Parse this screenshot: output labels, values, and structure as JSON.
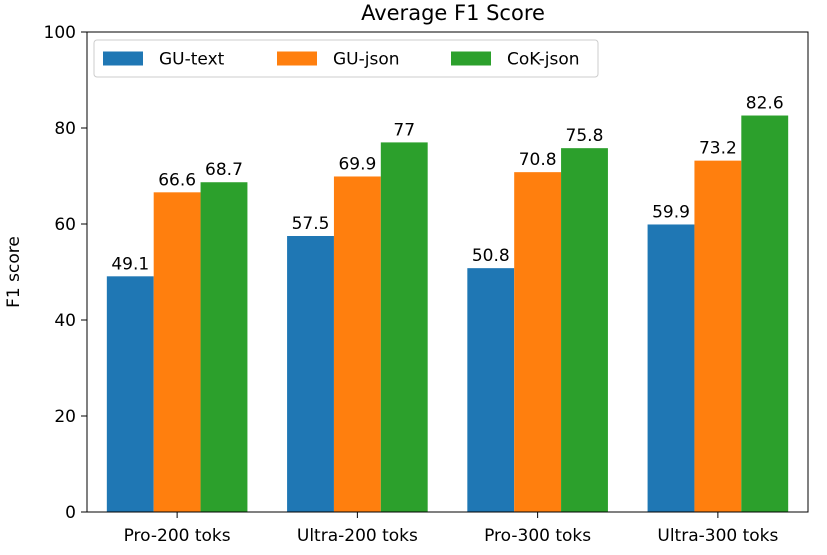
{
  "chart_data": {
    "type": "bar",
    "title": "Average F1 Score",
    "xlabel": "",
    "ylabel": "F1 score",
    "ylim": [
      0,
      100
    ],
    "yticks": [
      0,
      20,
      40,
      60,
      80,
      100
    ],
    "categories": [
      "Pro-200 toks",
      "Ultra-200 toks",
      "Pro-300 toks",
      "Ultra-300 toks"
    ],
    "series": [
      {
        "name": "GU-text",
        "color": "#1f77b4",
        "values": [
          49.1,
          57.5,
          50.8,
          59.9
        ],
        "labels": [
          "49.1",
          "57.5",
          "50.8",
          "59.9"
        ]
      },
      {
        "name": "GU-json",
        "color": "#ff7f0e",
        "values": [
          66.6,
          69.9,
          70.8,
          73.2
        ],
        "labels": [
          "66.6",
          "69.9",
          "70.8",
          "73.2"
        ]
      },
      {
        "name": "CoK-json",
        "color": "#2ca02c",
        "values": [
          68.7,
          77,
          75.8,
          82.6
        ],
        "labels": [
          "68.7",
          "77",
          "75.8",
          "82.6"
        ]
      }
    ],
    "legend": {
      "placement": "top-left",
      "ncol": 3
    },
    "grid": false
  }
}
